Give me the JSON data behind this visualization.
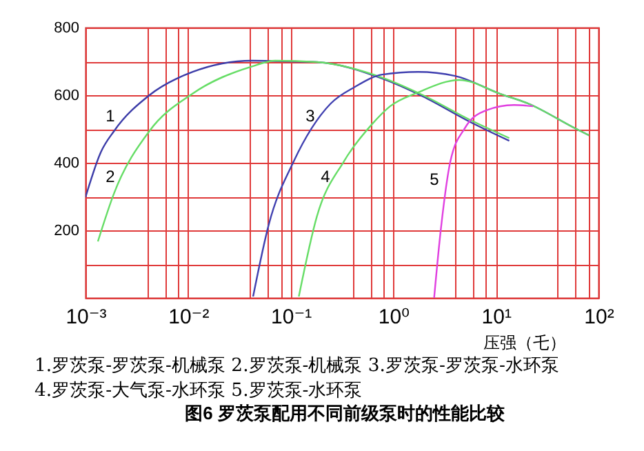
{
  "chart_data": {
    "type": "line",
    "title": "图6 罗茨泵配用不同前级泵时的性能比较",
    "xlabel": "压强（乇）",
    "log": "x",
    "grid": true,
    "line_style": "solid",
    "marker": "none",
    "xlim": [
      0.001,
      100
    ],
    "ylim": [
      0,
      800
    ],
    "xticks": [
      {
        "value": 0.001,
        "label": "10⁻³"
      },
      {
        "value": 0.004,
        "label": null
      },
      {
        "value": 0.006,
        "label": null
      },
      {
        "value": 0.008,
        "label": null
      },
      {
        "value": 0.01,
        "label": "10⁻²"
      },
      {
        "value": 0.04,
        "label": null
      },
      {
        "value": 0.06,
        "label": null
      },
      {
        "value": 0.08,
        "label": null
      },
      {
        "value": 0.1,
        "label": "10⁻¹"
      },
      {
        "value": 0.4,
        "label": null
      },
      {
        "value": 0.6,
        "label": null
      },
      {
        "value": 0.8,
        "label": null
      },
      {
        "value": 1,
        "label": "10⁰"
      },
      {
        "value": 4,
        "label": null
      },
      {
        "value": 6,
        "label": null
      },
      {
        "value": 8,
        "label": null
      },
      {
        "value": 10,
        "label": "10¹"
      },
      {
        "value": 40,
        "label": null
      },
      {
        "value": 60,
        "label": null
      },
      {
        "value": 80,
        "label": null
      },
      {
        "value": 100,
        "label": "10²"
      }
    ],
    "yticks": [
      {
        "value": 0,
        "label": null
      },
      {
        "value": 100,
        "label": null
      },
      200,
      {
        "value": 300,
        "label": null
      },
      400,
      {
        "value": 500,
        "label": null
      },
      600,
      {
        "value": 700,
        "label": null
      },
      800
    ],
    "series": [
      {
        "name": "1",
        "color": "#3c3ca8",
        "x": [
          0.001,
          0.00142,
          0.0019,
          0.0042,
          0.0111,
          0.042,
          0.1,
          0.18,
          0.78,
          1.95,
          5.5,
          13.5
        ],
        "values": [
          298,
          433,
          494,
          600,
          669,
          702,
          700,
          698,
          649,
          596,
          522,
          465
        ]
      },
      {
        "name": "2",
        "color": "#66dd66",
        "x": [
          0.00132,
          0.0019,
          0.0042,
          0.011,
          0.042,
          0.071,
          0.18,
          0.78,
          1.95,
          5.5,
          13.5
        ],
        "values": [
          167,
          310,
          494,
          604,
          685,
          702,
          698,
          652,
          600,
          528,
          473
        ]
      },
      {
        "name": "3",
        "color": "#4040b0",
        "x": [
          0.043,
          0.061,
          0.107,
          0.245,
          0.42,
          0.78,
          1.74,
          4.0,
          11,
          20.7,
          59,
          81
        ],
        "values": [
          4,
          216,
          404,
          575,
          624,
          661,
          669,
          657,
          604,
          575,
          502,
          481
        ]
      },
      {
        "name": "4",
        "color": "#66dd66",
        "x": [
          0.12,
          0.18,
          0.33,
          0.62,
          0.93,
          1.74,
          4.4,
          11,
          20.7,
          59,
          81
        ],
        "values": [
          4,
          241,
          404,
          514,
          567,
          608,
          645,
          604,
          575,
          502,
          481
        ]
      },
      {
        "name": "5",
        "color": "#e040e0",
        "x": [
          2.5,
          2.9,
          3.6,
          4.97,
          8.0,
          15,
          23
        ],
        "values": [
          0,
          200,
          404,
          502,
          555,
          571,
          567
        ]
      }
    ],
    "annotations": [
      "1.罗茨泵-罗茨泵-机械泵 2.罗茨泵-机械泵 3.罗茨泵-罗茨泵-水环泵",
      "4.罗茨泵-大气泵-水环泵 5.罗茨泵-水环泵"
    ]
  }
}
